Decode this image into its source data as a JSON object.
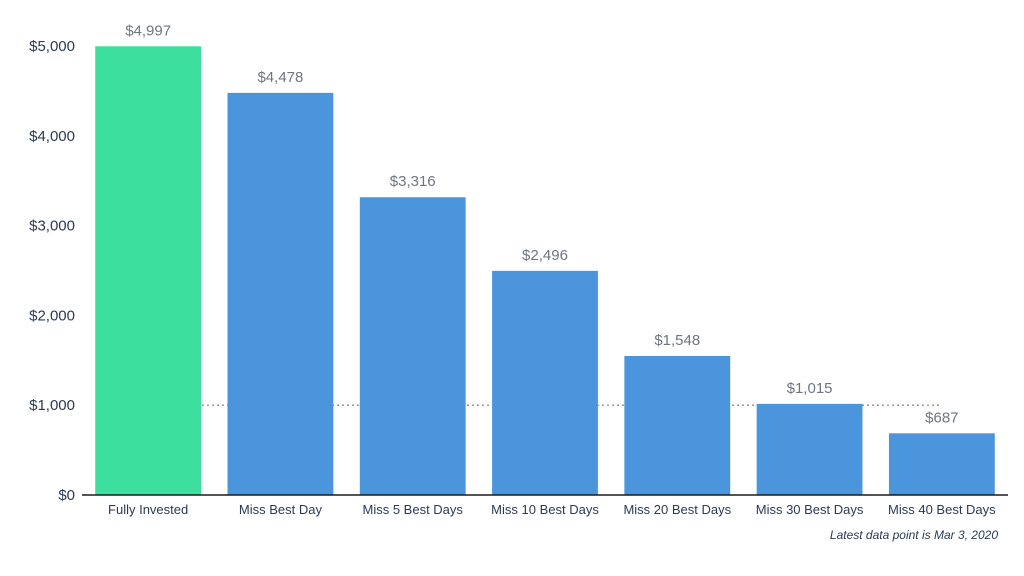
{
  "chart_data": {
    "type": "bar",
    "categories": [
      "Fully Invested",
      "Miss Best Day",
      "Miss 5 Best Days",
      "Miss 10 Best Days",
      "Miss 20 Best Days",
      "Miss 30 Best Days",
      "Miss 40 Best Days"
    ],
    "values": [
      4997,
      4478,
      3316,
      2496,
      1548,
      1015,
      687
    ],
    "data_labels": [
      "$4,997",
      "$4,478",
      "$3,316",
      "$2,496",
      "$1,548",
      "$1,015",
      "$687"
    ],
    "bar_colors": [
      "#3ddf9e",
      "#4a95dc",
      "#4a95dc",
      "#4a95dc",
      "#4a95dc",
      "#4a95dc",
      "#4a95dc"
    ],
    "yticks": [
      0,
      1000,
      2000,
      3000,
      4000,
      5000
    ],
    "ytick_labels": [
      "$0",
      "$1,000",
      "$2,000",
      "$3,000",
      "$4,000",
      "$5,000"
    ],
    "ylim": [
      0,
      5000
    ],
    "reference_line": {
      "value": 1000,
      "style": "dotted",
      "color": "#777777"
    },
    "title": "",
    "xlabel": "",
    "ylabel": "",
    "grid": false,
    "legend": "none",
    "footnote": "Latest data point is Mar 3, 2020"
  }
}
